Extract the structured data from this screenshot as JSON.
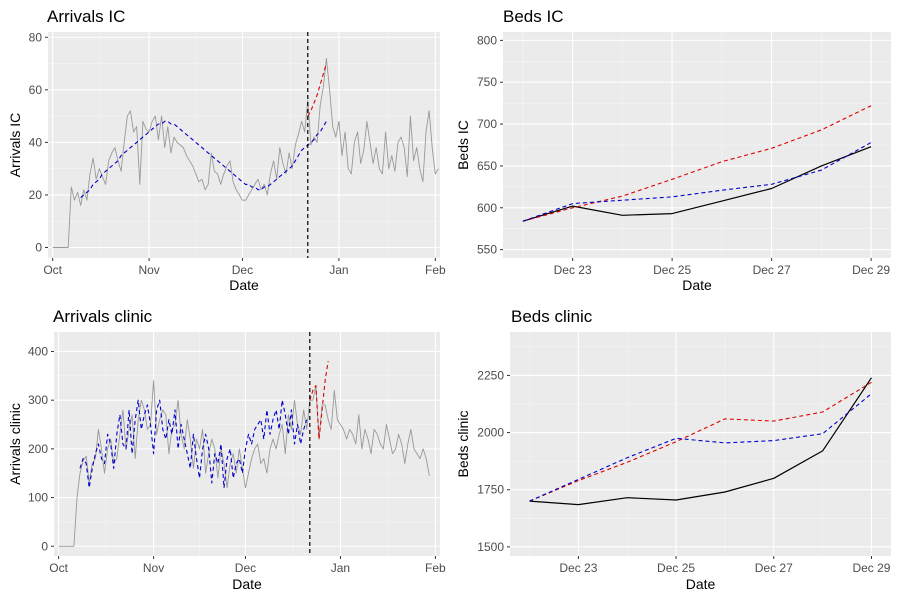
{
  "colors": {
    "panel": "#ebebeb",
    "grid_major": "#ffffff",
    "observed": "#999999",
    "actual": "#000000",
    "forecast_blue": "#0000cc",
    "forecast_red": "#dd0000",
    "cutoff": "#000000"
  },
  "chart_data": [
    {
      "id": "arrivals-ic",
      "type": "line",
      "title": "Arrivals IC",
      "xlabel": "Date",
      "ylabel": "Arrivals IC",
      "x_unit": "days since Oct 1",
      "xlim": [
        -1.5,
        124.5
      ],
      "ylim": [
        -4,
        82
      ],
      "x_ticks": [
        {
          "at": 0,
          "label": "Oct"
        },
        {
          "at": 31,
          "label": "Nov"
        },
        {
          "at": 61,
          "label": "Dec"
        },
        {
          "at": 92,
          "label": "Jan"
        },
        {
          "at": 123,
          "label": "Feb"
        }
      ],
      "y_ticks": [
        0,
        20,
        40,
        60,
        80
      ],
      "cutoff_x": 82,
      "series": [
        {
          "name": "observed",
          "x0": 0,
          "values": [
            0,
            0,
            0,
            0,
            0,
            0,
            23,
            18,
            21,
            16,
            22,
            18,
            28,
            34,
            26,
            30,
            27,
            24,
            33,
            36,
            38,
            33,
            29,
            40,
            50,
            52,
            44,
            46,
            24,
            48,
            45,
            44,
            48,
            50,
            41,
            50,
            38,
            46,
            36,
            42,
            40,
            39,
            38,
            35,
            33,
            31,
            28,
            25,
            26,
            22,
            24,
            36,
            29,
            28,
            24,
            28,
            31,
            33,
            25,
            22,
            20,
            18,
            18,
            20,
            22,
            24,
            26,
            22,
            24,
            20,
            28,
            33,
            26,
            38,
            32,
            28,
            36,
            30,
            39,
            43,
            48,
            44,
            56,
            39,
            42,
            40,
            54,
            61,
            72,
            60,
            46,
            42,
            48,
            35,
            44,
            30,
            28,
            40,
            44,
            32,
            37,
            48,
            40,
            32,
            38,
            30,
            28,
            44,
            30,
            35,
            29,
            40,
            42,
            38,
            27,
            50,
            33,
            38,
            30,
            25,
            44,
            52,
            38,
            28,
            30
          ]
        },
        {
          "name": "fitted",
          "x0": 9,
          "values": [
            19,
            20,
            21,
            22,
            24,
            25,
            26,
            28,
            29,
            30,
            31,
            32,
            33,
            35,
            36,
            37,
            38,
            39,
            40,
            41,
            42,
            43,
            44,
            45,
            46,
            47,
            47,
            48,
            48,
            47,
            47,
            46,
            45,
            44,
            43,
            42,
            41,
            40,
            39,
            38,
            37,
            36,
            35,
            34,
            33,
            32,
            31,
            30,
            29,
            28,
            27,
            26,
            25,
            24,
            24,
            23,
            23,
            22,
            22,
            23,
            23,
            24,
            25,
            26,
            27,
            28,
            29,
            30,
            31,
            33,
            35,
            37,
            38,
            39,
            40,
            41,
            43,
            44,
            46,
            48
          ]
        },
        {
          "name": "forecast",
          "x0": 82,
          "values": [
            50,
            52,
            55,
            58,
            62,
            66,
            70
          ]
        }
      ]
    },
    {
      "id": "beds-ic",
      "type": "line",
      "title": "Beds IC",
      "xlabel": "Date",
      "ylabel": "Beds IC",
      "x_unit": "day of December",
      "xlim": [
        21.6,
        29.4
      ],
      "ylim": [
        540,
        810
      ],
      "x_ticks": [
        {
          "at": 23,
          "label": "Dec 23"
        },
        {
          "at": 25,
          "label": "Dec 25"
        },
        {
          "at": 27,
          "label": "Dec 27"
        },
        {
          "at": 29,
          "label": "Dec 29"
        }
      ],
      "y_ticks": [
        550,
        600,
        650,
        700,
        750,
        800
      ],
      "series": [
        {
          "name": "actual",
          "x": [
            22,
            23,
            24,
            25,
            26,
            27,
            28,
            29
          ],
          "values": [
            584,
            602,
            591,
            593,
            608,
            623,
            650,
            673
          ]
        },
        {
          "name": "forecast-red",
          "x": [
            22,
            23,
            24,
            25,
            26,
            27,
            28,
            29
          ],
          "values": [
            584,
            600,
            614,
            634,
            655,
            671,
            693,
            722
          ]
        },
        {
          "name": "forecast-blue",
          "x": [
            22,
            23,
            24,
            25,
            26,
            27,
            28,
            29
          ],
          "values": [
            584,
            605,
            609,
            613,
            621,
            628,
            645,
            678
          ]
        }
      ]
    },
    {
      "id": "arrivals-clinic",
      "type": "line",
      "title": "Arrivals clinic",
      "xlabel": "Date",
      "ylabel": "Arrivals clinic",
      "x_unit": "days since Oct 1",
      "xlim": [
        -1.5,
        124.5
      ],
      "ylim": [
        -20,
        440
      ],
      "x_ticks": [
        {
          "at": 0,
          "label": "Oct"
        },
        {
          "at": 31,
          "label": "Nov"
        },
        {
          "at": 61,
          "label": "Dec"
        },
        {
          "at": 92,
          "label": "Jan"
        },
        {
          "at": 123,
          "label": "Feb"
        }
      ],
      "y_ticks": [
        0,
        100,
        200,
        300,
        400
      ],
      "cutoff_x": 82,
      "series": [
        {
          "name": "observed",
          "x0": 0,
          "values": [
            0,
            0,
            0,
            0,
            0,
            0,
            100,
            150,
            175,
            185,
            130,
            170,
            180,
            240,
            200,
            150,
            200,
            220,
            170,
            180,
            230,
            280,
            200,
            240,
            270,
            180,
            260,
            300,
            280,
            240,
            250,
            340,
            230,
            260,
            280,
            270,
            190,
            240,
            250,
            300,
            230,
            200,
            260,
            220,
            160,
            220,
            200,
            240,
            150,
            190,
            220,
            200,
            140,
            200,
            170,
            120,
            170,
            190,
            150,
            200,
            160,
            120,
            150,
            180,
            200,
            210,
            170,
            180,
            150,
            200,
            220,
            200,
            230,
            250,
            190,
            270,
            240,
            300,
            250,
            230,
            280,
            240,
            300,
            300,
            330,
            220,
            290,
            290,
            260,
            240,
            320,
            260,
            250,
            240,
            220,
            240,
            230,
            210,
            270,
            200,
            240,
            220,
            190,
            240,
            230,
            210,
            200,
            250,
            220,
            190,
            200,
            230,
            210,
            170,
            210,
            240,
            200,
            190,
            180,
            200,
            180,
            145
          ]
        },
        {
          "name": "fitted",
          "x0": 7,
          "values": [
            160,
            180,
            170,
            120,
            160,
            190,
            210,
            180,
            170,
            230,
            210,
            160,
            230,
            270,
            210,
            200,
            280,
            190,
            260,
            300,
            240,
            270,
            290,
            250,
            190,
            280,
            300,
            240,
            220,
            260,
            230,
            280,
            200,
            250,
            220,
            190,
            160,
            230,
            180,
            140,
            200,
            230,
            200,
            130,
            190,
            170,
            210,
            120,
            180,
            200,
            140,
            170,
            180,
            150,
            200,
            230,
            210,
            240,
            250,
            260,
            220,
            280,
            230,
            260,
            280,
            240,
            300,
            270,
            230,
            280,
            210,
            250,
            210,
            240,
            260
          ]
        },
        {
          "name": "forecast",
          "x0": 82,
          "values": [
            300,
            320,
            330,
            220,
            280,
            340,
            380
          ]
        }
      ]
    },
    {
      "id": "beds-clinic",
      "type": "line",
      "title": "Beds clinic",
      "xlabel": "Date",
      "ylabel": "Beds clinic",
      "x_unit": "day of December",
      "xlim": [
        21.6,
        29.4
      ],
      "ylim": [
        1460,
        2440
      ],
      "x_ticks": [
        {
          "at": 23,
          "label": "Dec 23"
        },
        {
          "at": 25,
          "label": "Dec 25"
        },
        {
          "at": 27,
          "label": "Dec 27"
        },
        {
          "at": 29,
          "label": "Dec 29"
        }
      ],
      "y_ticks": [
        1500,
        1750,
        2000,
        2250
      ],
      "series": [
        {
          "name": "actual",
          "x": [
            22,
            23,
            24,
            25,
            26,
            27,
            28,
            29
          ],
          "values": [
            1700,
            1685,
            1715,
            1705,
            1740,
            1800,
            1920,
            2240
          ]
        },
        {
          "name": "forecast-red",
          "x": [
            22,
            23,
            24,
            25,
            26,
            27,
            28,
            29
          ],
          "values": [
            1700,
            1790,
            1870,
            1960,
            2060,
            2050,
            2090,
            2220
          ]
        },
        {
          "name": "forecast-blue",
          "x": [
            22,
            23,
            24,
            25,
            26,
            27,
            28,
            29
          ],
          "values": [
            1700,
            1795,
            1890,
            1975,
            1955,
            1965,
            1995,
            2170
          ]
        }
      ]
    }
  ]
}
